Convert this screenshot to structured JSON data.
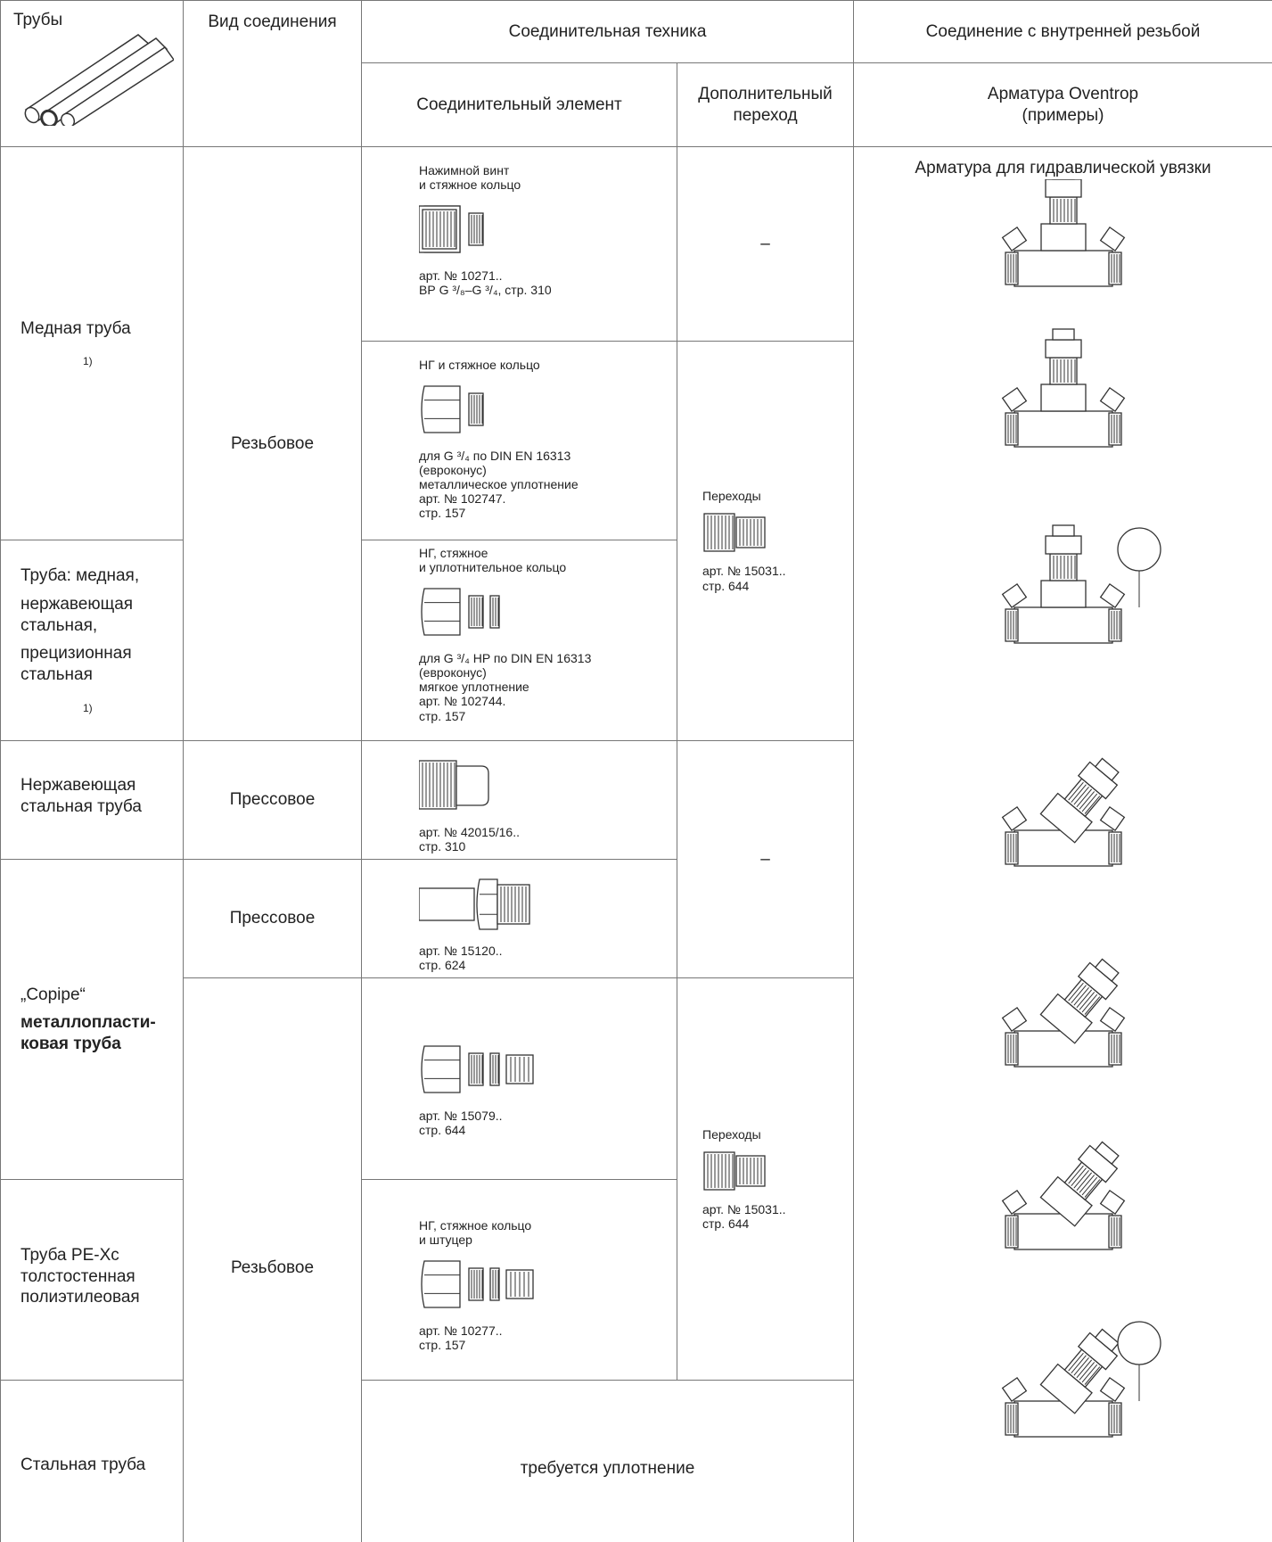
{
  "header": {
    "pipes": "Трубы",
    "connection_type": "Вид соединения",
    "technique": "Соединительная техника",
    "internal_thread": "Соединение с внутренней резьбой",
    "element": "Соединительный элемент",
    "adapter": [
      "Дополнительный",
      "переход"
    ],
    "fittings": [
      "Арматура Oventrop",
      "(примеры)"
    ]
  },
  "pipes": [
    {
      "label": [
        "Медная труба"
      ],
      "note": "1)"
    },
    {
      "label": [
        "Труба: медная,",
        "нержавеющая стальная,",
        "прецизионная стальная"
      ],
      "note": "1)"
    },
    {
      "label": [
        "Нержавеющая стальная труба"
      ]
    },
    {
      "label": [
        "„Copipe“"
      ],
      "bold": [
        "металлопласти-",
        "ковая труба"
      ]
    },
    {
      "label": [
        "Труба PE-Xc толстостенная полиэтилеовая"
      ]
    },
    {
      "label": [
        "Стальная труба"
      ]
    }
  ],
  "connection_types": [
    "Резьбовое",
    "Прессовое",
    "Прессовое",
    "Резьбовое"
  ],
  "elements": [
    {
      "caption": [
        "Нажимной винт",
        "и стяжное кольцо"
      ],
      "article": [
        "арт. № 10271..",
        "ВР G ³/₈–G ³/₄, стр. 310"
      ]
    },
    {
      "caption": [
        "НГ и стяжное кольцо"
      ],
      "article": [
        "для G ³/₄ по DIN EN 16313",
        "(евроконус)",
        "металлическое уплотнение",
        "арт. № 102747.",
        "стр. 157"
      ]
    },
    {
      "caption": [
        "НГ, стяжное",
        "и уплотнительное кольцо"
      ],
      "article": [
        "для G ³/₄ HP по DIN EN 16313",
        "(евроконус)",
        "мягкое уплотнение",
        "арт. № 102744.",
        "стр. 157"
      ]
    },
    {
      "caption": [],
      "article": [
        "арт. № 42015/16..",
        "стр. 310"
      ]
    },
    {
      "caption": [],
      "article": [
        "арт. № 15120..",
        "стр. 624"
      ]
    },
    {
      "caption": [],
      "article": [
        "арт. № 15079..",
        "стр. 644"
      ]
    },
    {
      "caption": [
        "НГ, стяжное кольцо",
        "и штуцер"
      ],
      "article": [
        "арт. № 10277..",
        "стр. 157"
      ]
    }
  ],
  "sealing": "требуется уплотнение",
  "adapters": [
    {
      "text": "–"
    },
    {
      "caption": "Переходы",
      "article": [
        "арт. № 15031..",
        "стр. 644"
      ]
    },
    {
      "text": "–"
    },
    {
      "caption": "Переходы",
      "article": [
        "арт. № 15031..",
        "стр. 644"
      ]
    }
  ],
  "fittings_title": "Арматура для гидравлической увязки"
}
